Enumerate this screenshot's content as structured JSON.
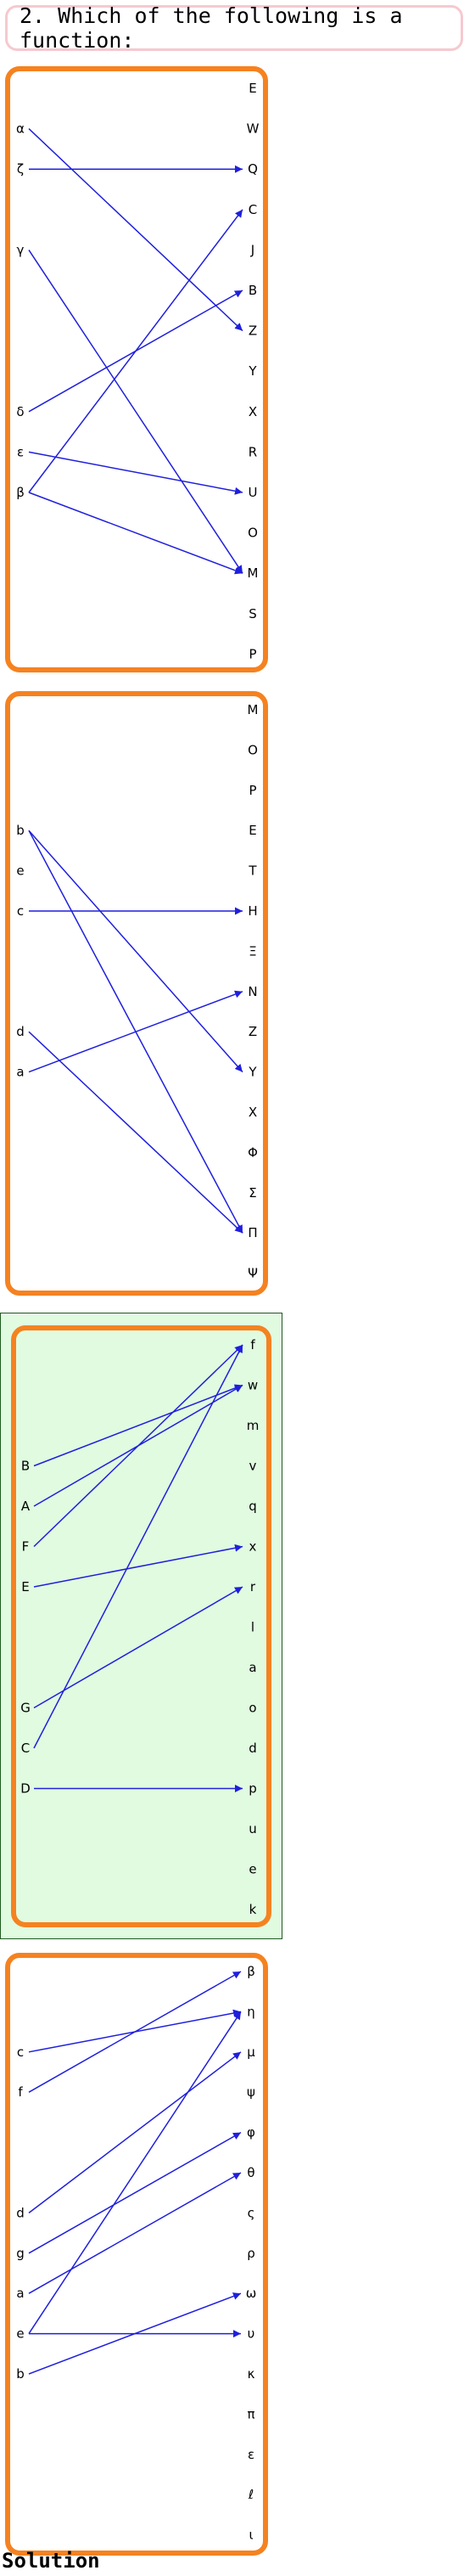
{
  "question": {
    "text": "2. Which of the following is a function:"
  },
  "solution_label": "Solution",
  "colors": {
    "frame": "#f58220",
    "arrow": "#1f1fdd",
    "correct_bg": "#e0fbe0",
    "question_border": "#f6c9cf"
  },
  "options": [
    {
      "correct": false,
      "left": [
        {
          "label": "α",
          "row": 1
        },
        {
          "label": "ζ",
          "row": 2
        },
        {
          "label": "γ",
          "row": 4
        },
        {
          "label": "δ",
          "row": 8
        },
        {
          "label": "ε",
          "row": 9
        },
        {
          "label": "β",
          "row": 10
        }
      ],
      "right": [
        "E",
        "W",
        "Q",
        "C",
        "J",
        "B",
        "Z",
        "Y",
        "X",
        "R",
        "U",
        "O",
        "M",
        "S",
        "P"
      ],
      "edges": [
        [
          "α",
          "Z"
        ],
        [
          "ζ",
          "Q"
        ],
        [
          "γ",
          "M"
        ],
        [
          "δ",
          "B"
        ],
        [
          "ε",
          "U"
        ],
        [
          "β",
          "C"
        ],
        [
          "β",
          "M"
        ]
      ]
    },
    {
      "correct": false,
      "left": [
        {
          "label": "b",
          "row": 3
        },
        {
          "label": "e",
          "row": 4
        },
        {
          "label": "c",
          "row": 5
        },
        {
          "label": "d",
          "row": 8
        },
        {
          "label": "a",
          "row": 9
        }
      ],
      "right": [
        "M",
        "O",
        "P",
        "E",
        "T",
        "H",
        "Ξ",
        "N",
        "Z",
        "Y",
        "X",
        "Φ",
        "Σ",
        "Π",
        "Ψ"
      ],
      "edges": [
        [
          "b",
          "Y"
        ],
        [
          "b",
          "Π"
        ],
        [
          "c",
          "H"
        ],
        [
          "d",
          "Π"
        ],
        [
          "a",
          "N"
        ]
      ]
    },
    {
      "correct": true,
      "left": [
        {
          "label": "B",
          "row": 3
        },
        {
          "label": "A",
          "row": 4
        },
        {
          "label": "F",
          "row": 5
        },
        {
          "label": "E",
          "row": 6
        },
        {
          "label": "G",
          "row": 9
        },
        {
          "label": "C",
          "row": 10
        },
        {
          "label": "D",
          "row": 11
        }
      ],
      "right": [
        "f",
        "w",
        "m",
        "v",
        "q",
        "x",
        "r",
        "l",
        "a",
        "o",
        "d",
        "p",
        "u",
        "e",
        "k"
      ],
      "edges": [
        [
          "B",
          "w"
        ],
        [
          "A",
          "w"
        ],
        [
          "F",
          "f"
        ],
        [
          "E",
          "x"
        ],
        [
          "G",
          "r"
        ],
        [
          "C",
          "f"
        ],
        [
          "D",
          "p"
        ]
      ]
    },
    {
      "correct": false,
      "left": [
        {
          "label": "c",
          "row": 2
        },
        {
          "label": "f",
          "row": 3
        },
        {
          "label": "d",
          "row": 6
        },
        {
          "label": "g",
          "row": 7
        },
        {
          "label": "a",
          "row": 8
        },
        {
          "label": "e",
          "row": 9
        },
        {
          "label": "b",
          "row": 10
        }
      ],
      "right": [
        "β",
        "η",
        "μ",
        "ψ",
        "φ",
        "θ",
        "ς",
        "ρ",
        "ω",
        "υ",
        "κ",
        "π",
        "ε",
        "ℓ",
        "ι"
      ],
      "edges": [
        [
          "c",
          "η"
        ],
        [
          "f",
          "β"
        ],
        [
          "d",
          "μ"
        ],
        [
          "g",
          "φ"
        ],
        [
          "a",
          "θ"
        ],
        [
          "e",
          "η"
        ],
        [
          "e",
          "υ"
        ],
        [
          "b",
          "ω"
        ]
      ]
    }
  ]
}
